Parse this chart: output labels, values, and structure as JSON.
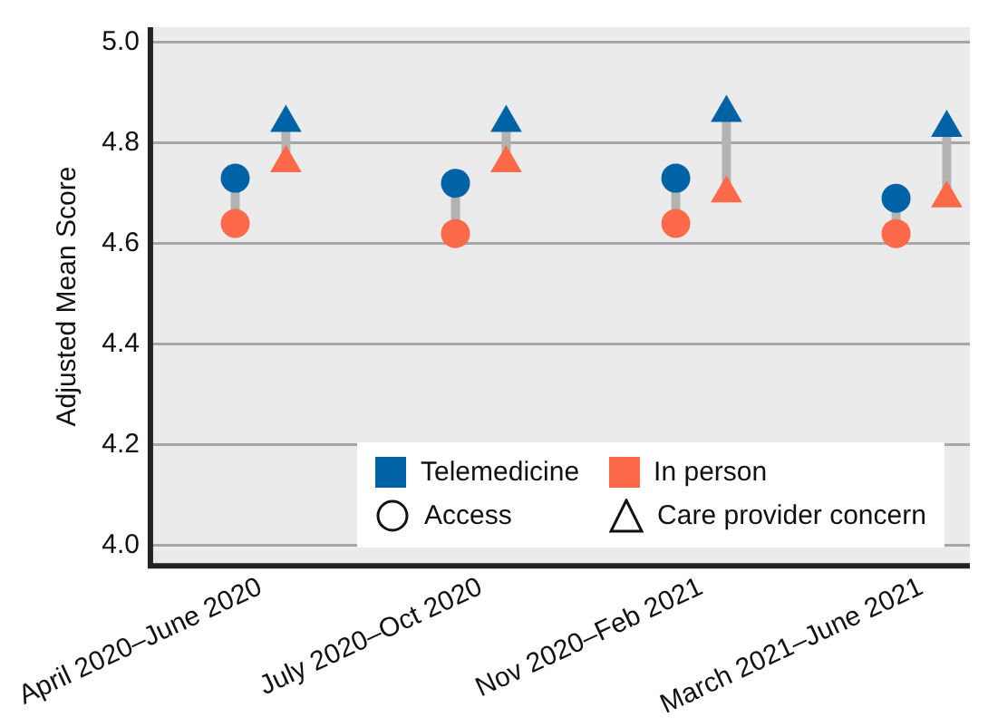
{
  "chart_data": {
    "type": "scatter",
    "ylabel": "Adjusted Mean Score",
    "categories": [
      "April 2020–June 2020",
      "July 2020–Oct 2020",
      "Nov 2020–Feb 2021",
      "March 2021–June 2021"
    ],
    "series": [
      {
        "name": "Telemedicine",
        "color": "#0063a6",
        "marker": "circle",
        "values": [
          4.73,
          4.72,
          4.73,
          4.69
        ]
      },
      {
        "name": "In person",
        "color": "#fd6a4a",
        "marker": "circle",
        "values": [
          4.64,
          4.62,
          4.64,
          4.62
        ]
      },
      {
        "color": "#0063a6",
        "marker": "triangle",
        "values": [
          4.84,
          4.84,
          4.86,
          4.83
        ]
      },
      {
        "color": "#fd6a4a",
        "marker": "triangle",
        "values": [
          4.76,
          4.76,
          4.7,
          4.69
        ]
      }
    ],
    "annotations": [
      "Access",
      "Care provider concern"
    ],
    "ylim": [
      3.96,
      5.03
    ],
    "yticks": [
      {
        "value": 4,
        "label": "4.0"
      },
      {
        "value": 4.2,
        "label": "4.2"
      },
      {
        "value": 4.4,
        "label": "4.4"
      },
      {
        "value": 4.6,
        "label": "4.6"
      },
      {
        "value": 4.8,
        "label": "4.8"
      },
      {
        "value": 5,
        "label": "5.0"
      }
    ],
    "grid": "y",
    "legend": "bottom right"
  }
}
